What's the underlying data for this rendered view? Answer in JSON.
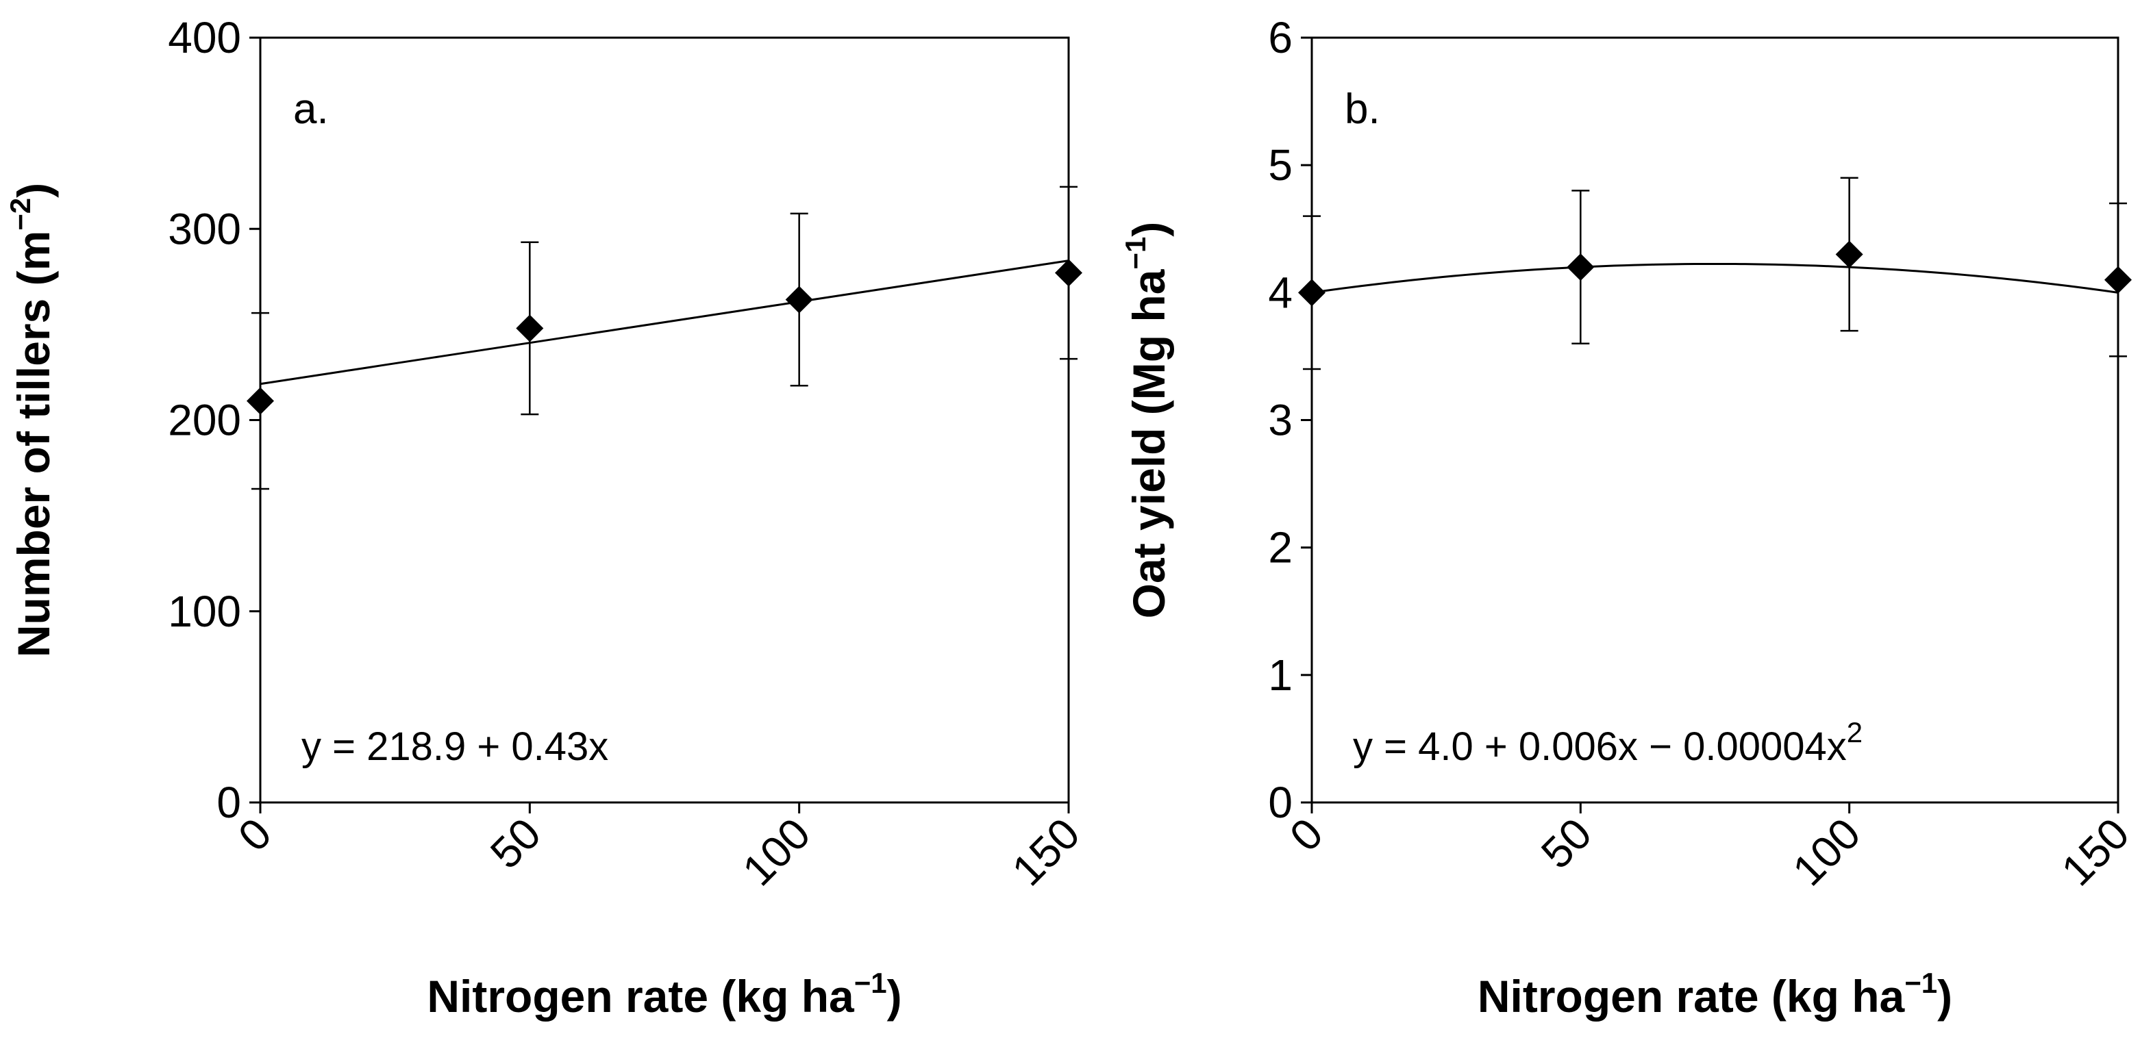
{
  "chart_data": [
    {
      "type": "scatter",
      "panel_label": "a.",
      "xlabel": "Nitrogen rate (kg ha",
      "xlabel_sup": "−1",
      "xlabel_close": ")",
      "ylabel": "Number of tillers (m",
      "ylabel_sup": "−2",
      "ylabel_close": ")",
      "xlim": [
        0,
        150
      ],
      "ylim": [
        0,
        400
      ],
      "xticks": [
        "0",
        "50",
        "100",
        "150"
      ],
      "yticks": [
        "0",
        "100",
        "200",
        "300",
        "400"
      ],
      "x": [
        0,
        50,
        100,
        150
      ],
      "y": [
        210,
        248,
        263,
        277
      ],
      "error": [
        46,
        45,
        45,
        45
      ],
      "fit": {
        "kind": "linear",
        "intercept": 218.9,
        "slope": 0.43
      },
      "equation": "y = 218.9 + 0.43x",
      "equation_sup": ""
    },
    {
      "type": "scatter",
      "panel_label": "b.",
      "xlabel": "Nitrogen rate (kg ha",
      "xlabel_sup": "−1",
      "xlabel_close": ")",
      "ylabel": "Oat yield (Mg ha",
      "ylabel_sup": "−1",
      "ylabel_close": ")",
      "xlim": [
        0,
        150
      ],
      "ylim": [
        0,
        6
      ],
      "xticks": [
        "0",
        "50",
        "100",
        "150"
      ],
      "yticks": [
        "0",
        "1",
        "2",
        "3",
        "4",
        "5",
        "6"
      ],
      "x": [
        0,
        50,
        100,
        150
      ],
      "y": [
        4.0,
        4.2,
        4.3,
        4.1
      ],
      "error": [
        0.6,
        0.6,
        0.6,
        0.6
      ],
      "fit": {
        "kind": "quadratic",
        "a": 4.0,
        "b": 0.006,
        "c": -4e-05
      },
      "equation": "y = 4.0 + 0.006x − 0.00004x",
      "equation_sup": "2"
    }
  ]
}
